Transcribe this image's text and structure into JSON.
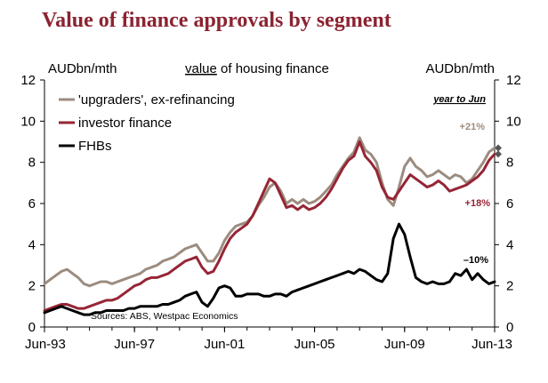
{
  "title": "Value of finance approvals by segment",
  "subtitle_prefix": "value",
  "subtitle_suffix": " of housing finance",
  "unit_left": "AUDbn/mth",
  "unit_right": "AUDbn/mth",
  "source": "Sources: ABS, Westpac Economics",
  "annotation_header": "year to Jun",
  "colors": {
    "upgraders": "#9c8c7f",
    "investor": "#962535",
    "fhb": "#000000",
    "title": "#8b2331",
    "axis": "#000000"
  },
  "chart_data": {
    "type": "line",
    "title": "Value of finance approvals by segment",
    "subtitle": "value of housing finance",
    "ylabel_left": "AUDbn/mth",
    "ylabel_right": "AUDbn/mth",
    "ylim": [
      0,
      12
    ],
    "yticks": [
      "0",
      "2",
      "4",
      "6",
      "8",
      "10",
      "12"
    ],
    "xlim": [
      "1993-06",
      "2013-06"
    ],
    "xticks": [
      "Jun-93",
      "Jun-97",
      "Jun-01",
      "Jun-05",
      "Jun-09",
      "Jun-13"
    ],
    "grid": false,
    "legend_position": "top-left",
    "series": [
      {
        "name": "'upgraders', ex-refinancing",
        "color": "#9c8c7f",
        "annotation": "+21%",
        "end_marker": true,
        "points": [
          [
            "1993-06",
            2.1
          ],
          [
            "1993-09",
            2.3
          ],
          [
            "1993-12",
            2.5
          ],
          [
            "1994-03",
            2.7
          ],
          [
            "1994-06",
            2.8
          ],
          [
            "1994-09",
            2.6
          ],
          [
            "1994-12",
            2.4
          ],
          [
            "1995-03",
            2.1
          ],
          [
            "1995-06",
            2.0
          ],
          [
            "1995-09",
            2.1
          ],
          [
            "1995-12",
            2.2
          ],
          [
            "1996-03",
            2.2
          ],
          [
            "1996-06",
            2.1
          ],
          [
            "1996-09",
            2.2
          ],
          [
            "1996-12",
            2.3
          ],
          [
            "1997-03",
            2.4
          ],
          [
            "1997-06",
            2.5
          ],
          [
            "1997-09",
            2.6
          ],
          [
            "1997-12",
            2.8
          ],
          [
            "1998-03",
            2.9
          ],
          [
            "1998-06",
            3.0
          ],
          [
            "1998-09",
            3.2
          ],
          [
            "1998-12",
            3.3
          ],
          [
            "1999-03",
            3.4
          ],
          [
            "1999-06",
            3.6
          ],
          [
            "1999-09",
            3.8
          ],
          [
            "1999-12",
            3.9
          ],
          [
            "2000-03",
            4.0
          ],
          [
            "2000-06",
            3.6
          ],
          [
            "2000-09",
            3.2
          ],
          [
            "2000-12",
            3.2
          ],
          [
            "2001-03",
            3.6
          ],
          [
            "2001-06",
            4.2
          ],
          [
            "2001-09",
            4.6
          ],
          [
            "2001-12",
            4.9
          ],
          [
            "2002-03",
            5.0
          ],
          [
            "2002-06",
            5.1
          ],
          [
            "2002-09",
            5.4
          ],
          [
            "2002-12",
            5.9
          ],
          [
            "2003-03",
            6.3
          ],
          [
            "2003-06",
            6.8
          ],
          [
            "2003-09",
            7.0
          ],
          [
            "2003-12",
            6.6
          ],
          [
            "2004-03",
            6.0
          ],
          [
            "2004-06",
            6.2
          ],
          [
            "2004-09",
            6.0
          ],
          [
            "2004-12",
            6.2
          ],
          [
            "2005-03",
            6.0
          ],
          [
            "2005-06",
            6.1
          ],
          [
            "2005-09",
            6.3
          ],
          [
            "2005-12",
            6.6
          ],
          [
            "2006-03",
            6.9
          ],
          [
            "2006-06",
            7.4
          ],
          [
            "2006-09",
            7.8
          ],
          [
            "2006-12",
            8.2
          ],
          [
            "2007-03",
            8.5
          ],
          [
            "2007-06",
            9.2
          ],
          [
            "2007-09",
            8.6
          ],
          [
            "2007-12",
            8.4
          ],
          [
            "2008-03",
            8.0
          ],
          [
            "2008-06",
            7.0
          ],
          [
            "2008-09",
            6.2
          ],
          [
            "2008-12",
            5.9
          ],
          [
            "2009-03",
            6.8
          ],
          [
            "2009-06",
            7.8
          ],
          [
            "2009-09",
            8.2
          ],
          [
            "2009-12",
            7.8
          ],
          [
            "2010-03",
            7.6
          ],
          [
            "2010-06",
            7.3
          ],
          [
            "2010-09",
            7.4
          ],
          [
            "2010-12",
            7.6
          ],
          [
            "2011-03",
            7.4
          ],
          [
            "2011-06",
            7.2
          ],
          [
            "2011-09",
            7.4
          ],
          [
            "2011-12",
            7.3
          ],
          [
            "2012-03",
            7.0
          ],
          [
            "2012-06",
            7.2
          ],
          [
            "2012-09",
            7.6
          ],
          [
            "2012-12",
            8.0
          ],
          [
            "2013-03",
            8.5
          ],
          [
            "2013-06",
            8.7
          ]
        ]
      },
      {
        "name": "investor finance",
        "color": "#962535",
        "annotation": "+18%",
        "end_marker": true,
        "points": [
          [
            "1993-06",
            0.8
          ],
          [
            "1993-09",
            0.9
          ],
          [
            "1993-12",
            1.0
          ],
          [
            "1994-03",
            1.1
          ],
          [
            "1994-06",
            1.1
          ],
          [
            "1994-09",
            1.0
          ],
          [
            "1994-12",
            0.9
          ],
          [
            "1995-03",
            0.9
          ],
          [
            "1995-06",
            1.0
          ],
          [
            "1995-09",
            1.1
          ],
          [
            "1995-12",
            1.2
          ],
          [
            "1996-03",
            1.3
          ],
          [
            "1996-06",
            1.3
          ],
          [
            "1996-09",
            1.4
          ],
          [
            "1996-12",
            1.6
          ],
          [
            "1997-03",
            1.8
          ],
          [
            "1997-06",
            2.0
          ],
          [
            "1997-09",
            2.1
          ],
          [
            "1997-12",
            2.3
          ],
          [
            "1998-03",
            2.4
          ],
          [
            "1998-06",
            2.4
          ],
          [
            "1998-09",
            2.5
          ],
          [
            "1998-12",
            2.6
          ],
          [
            "1999-03",
            2.8
          ],
          [
            "1999-06",
            3.0
          ],
          [
            "1999-09",
            3.2
          ],
          [
            "1999-12",
            3.3
          ],
          [
            "2000-03",
            3.4
          ],
          [
            "2000-06",
            2.9
          ],
          [
            "2000-09",
            2.6
          ],
          [
            "2000-12",
            2.7
          ],
          [
            "2001-03",
            3.2
          ],
          [
            "2001-06",
            3.8
          ],
          [
            "2001-09",
            4.3
          ],
          [
            "2001-12",
            4.6
          ],
          [
            "2002-03",
            4.8
          ],
          [
            "2002-06",
            5.0
          ],
          [
            "2002-09",
            5.4
          ],
          [
            "2002-12",
            6.0
          ],
          [
            "2003-03",
            6.6
          ],
          [
            "2003-06",
            7.2
          ],
          [
            "2003-09",
            7.0
          ],
          [
            "2003-12",
            6.4
          ],
          [
            "2004-03",
            5.8
          ],
          [
            "2004-06",
            5.9
          ],
          [
            "2004-09",
            5.7
          ],
          [
            "2004-12",
            5.9
          ],
          [
            "2005-03",
            5.7
          ],
          [
            "2005-06",
            5.8
          ],
          [
            "2005-09",
            6.0
          ],
          [
            "2005-12",
            6.3
          ],
          [
            "2006-03",
            6.7
          ],
          [
            "2006-06",
            7.2
          ],
          [
            "2006-09",
            7.7
          ],
          [
            "2006-12",
            8.1
          ],
          [
            "2007-03",
            8.3
          ],
          [
            "2007-06",
            9.0
          ],
          [
            "2007-09",
            8.3
          ],
          [
            "2007-12",
            8.0
          ],
          [
            "2008-03",
            7.6
          ],
          [
            "2008-06",
            6.8
          ],
          [
            "2008-09",
            6.3
          ],
          [
            "2008-12",
            6.2
          ],
          [
            "2009-03",
            6.6
          ],
          [
            "2009-06",
            7.0
          ],
          [
            "2009-09",
            7.4
          ],
          [
            "2009-12",
            7.2
          ],
          [
            "2010-03",
            7.0
          ],
          [
            "2010-06",
            6.8
          ],
          [
            "2010-09",
            6.9
          ],
          [
            "2010-12",
            7.1
          ],
          [
            "2011-03",
            6.9
          ],
          [
            "2011-06",
            6.6
          ],
          [
            "2011-09",
            6.7
          ],
          [
            "2011-12",
            6.8
          ],
          [
            "2012-03",
            6.9
          ],
          [
            "2012-06",
            7.1
          ],
          [
            "2012-09",
            7.3
          ],
          [
            "2012-12",
            7.6
          ],
          [
            "2013-03",
            8.1
          ],
          [
            "2013-06",
            8.4
          ]
        ]
      },
      {
        "name": "FHBs",
        "color": "#000000",
        "annotation": "–10%",
        "end_marker": false,
        "points": [
          [
            "1993-06",
            0.7
          ],
          [
            "1993-09",
            0.8
          ],
          [
            "1993-12",
            0.9
          ],
          [
            "1994-03",
            1.0
          ],
          [
            "1994-06",
            0.9
          ],
          [
            "1994-09",
            0.8
          ],
          [
            "1994-12",
            0.7
          ],
          [
            "1995-03",
            0.6
          ],
          [
            "1995-06",
            0.6
          ],
          [
            "1995-09",
            0.7
          ],
          [
            "1995-12",
            0.7
          ],
          [
            "1996-03",
            0.8
          ],
          [
            "1996-06",
            0.8
          ],
          [
            "1996-09",
            0.8
          ],
          [
            "1996-12",
            0.8
          ],
          [
            "1997-03",
            0.9
          ],
          [
            "1997-06",
            0.9
          ],
          [
            "1997-09",
            1.0
          ],
          [
            "1997-12",
            1.0
          ],
          [
            "1998-03",
            1.0
          ],
          [
            "1998-06",
            1.0
          ],
          [
            "1998-09",
            1.1
          ],
          [
            "1998-12",
            1.1
          ],
          [
            "1999-03",
            1.2
          ],
          [
            "1999-06",
            1.3
          ],
          [
            "1999-09",
            1.5
          ],
          [
            "1999-12",
            1.6
          ],
          [
            "2000-03",
            1.7
          ],
          [
            "2000-06",
            1.2
          ],
          [
            "2000-09",
            1.0
          ],
          [
            "2000-12",
            1.4
          ],
          [
            "2001-03",
            1.9
          ],
          [
            "2001-06",
            2.0
          ],
          [
            "2001-09",
            1.9
          ],
          [
            "2001-12",
            1.5
          ],
          [
            "2002-03",
            1.5
          ],
          [
            "2002-06",
            1.6
          ],
          [
            "2002-09",
            1.6
          ],
          [
            "2002-12",
            1.6
          ],
          [
            "2003-03",
            1.5
          ],
          [
            "2003-06",
            1.5
          ],
          [
            "2003-09",
            1.6
          ],
          [
            "2003-12",
            1.6
          ],
          [
            "2004-03",
            1.5
          ],
          [
            "2004-06",
            1.7
          ],
          [
            "2004-09",
            1.8
          ],
          [
            "2004-12",
            1.9
          ],
          [
            "2005-03",
            2.0
          ],
          [
            "2005-06",
            2.1
          ],
          [
            "2005-09",
            2.2
          ],
          [
            "2005-12",
            2.3
          ],
          [
            "2006-03",
            2.4
          ],
          [
            "2006-06",
            2.5
          ],
          [
            "2006-09",
            2.6
          ],
          [
            "2006-12",
            2.7
          ],
          [
            "2007-03",
            2.6
          ],
          [
            "2007-06",
            2.8
          ],
          [
            "2007-09",
            2.7
          ],
          [
            "2007-12",
            2.5
          ],
          [
            "2008-03",
            2.3
          ],
          [
            "2008-06",
            2.2
          ],
          [
            "2008-09",
            2.6
          ],
          [
            "2008-12",
            4.3
          ],
          [
            "2009-03",
            5.0
          ],
          [
            "2009-06",
            4.5
          ],
          [
            "2009-09",
            3.4
          ],
          [
            "2009-12",
            2.4
          ],
          [
            "2010-03",
            2.2
          ],
          [
            "2010-06",
            2.1
          ],
          [
            "2010-09",
            2.2
          ],
          [
            "2010-12",
            2.1
          ],
          [
            "2011-03",
            2.1
          ],
          [
            "2011-06",
            2.2
          ],
          [
            "2011-09",
            2.6
          ],
          [
            "2011-12",
            2.5
          ],
          [
            "2012-03",
            2.8
          ],
          [
            "2012-06",
            2.3
          ],
          [
            "2012-09",
            2.6
          ],
          [
            "2012-12",
            2.3
          ],
          [
            "2013-03",
            2.1
          ],
          [
            "2013-06",
            2.2
          ]
        ]
      }
    ]
  }
}
